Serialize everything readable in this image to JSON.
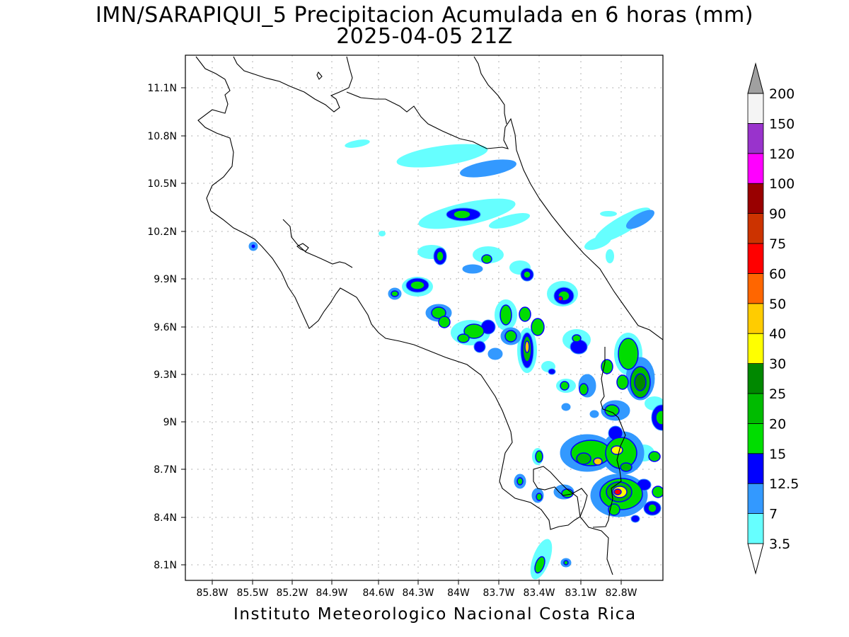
{
  "header": {
    "title": "IMN/SARAPIQUI_5 Precipitacion Acumulada en 6 horas (mm)",
    "subtitle": "2025-04-05 21Z"
  },
  "footer": {
    "credit": "Instituto Meteorologico Nacional Costa Rica"
  },
  "map": {
    "lon_ticks": [
      "85.8W",
      "85.5W",
      "85.2W",
      "84.9W",
      "84.6W",
      "84.3W",
      "84W",
      "83.7W",
      "83.4W",
      "83.1W",
      "82.8W"
    ],
    "lat_ticks": [
      "11.1N",
      "10.8N",
      "10.5N",
      "10.2N",
      "9.9N",
      "9.6N",
      "9.3N",
      "9N",
      "8.7N",
      "8.4N",
      "8.1N"
    ],
    "lon_range": [
      -85.97,
      -82.55
    ],
    "lat_range": [
      8.02,
      11.28
    ],
    "grid": true
  },
  "colorbar": {
    "labels": [
      "3.5",
      "7",
      "12.5",
      "15",
      "20",
      "25",
      "30",
      "40",
      "50",
      "60",
      "75",
      "90",
      "100",
      "120",
      "150",
      "200"
    ],
    "colors": [
      "#66ffff",
      "#3399ff",
      "#0000ff",
      "#00dd00",
      "#00bb00",
      "#008800",
      "#ffff00",
      "#ffcc00",
      "#ff6600",
      "#ff0000",
      "#cc3300",
      "#990000",
      "#ff00ff",
      "#9933cc",
      "#f4f4f4",
      "#a0a0a0"
    ]
  },
  "colors": {
    "c1": "#66ffff",
    "c2": "#3399ff",
    "c3": "#0000ff",
    "c4": "#00dd00",
    "c5": "#00bb00",
    "c6": "#008800",
    "c7": "#ffff00",
    "c8": "#ffcc00",
    "c9": "#ff0000"
  }
}
